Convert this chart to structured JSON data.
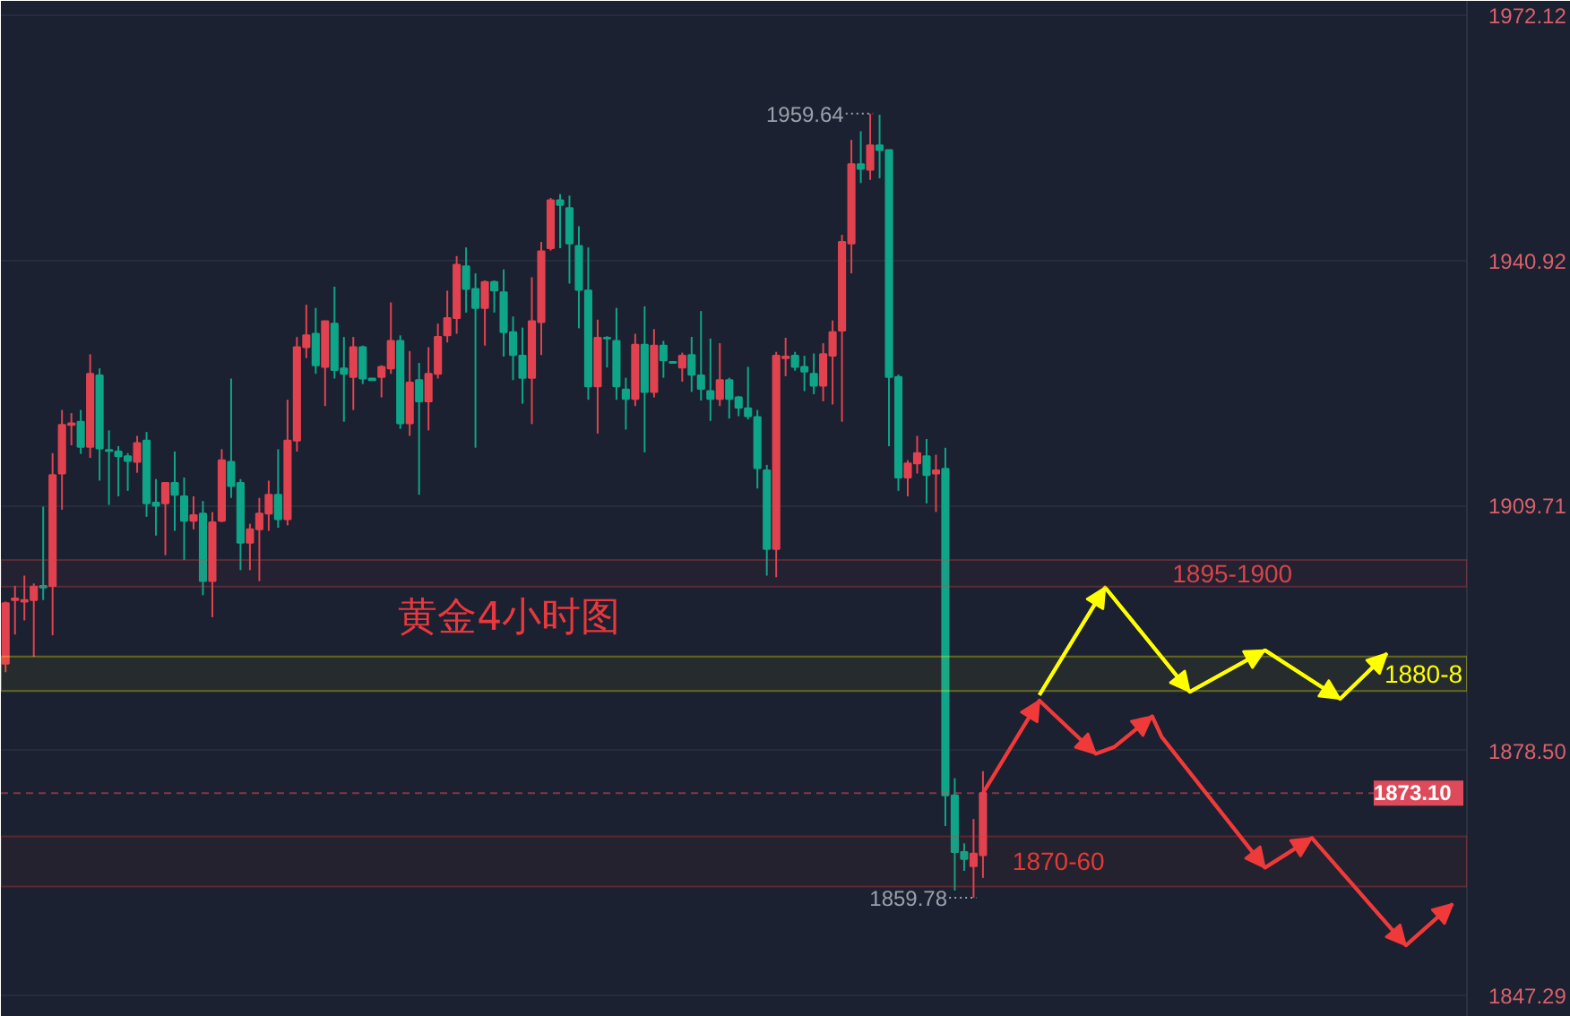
{
  "chart_data": {
    "type": "candlestick",
    "categories": [
      null,
      null,
      null,
      null,
      null,
      null,
      null,
      null,
      null,
      null,
      null,
      null,
      null,
      null,
      null,
      null,
      null,
      null,
      null,
      null,
      null,
      null,
      null,
      null,
      null,
      null,
      null,
      null,
      null,
      null,
      null,
      null,
      null,
      null,
      null,
      null,
      null,
      null,
      null,
      null,
      null,
      null,
      null,
      null,
      null,
      null,
      null,
      null,
      null,
      null,
      null,
      null,
      null,
      null,
      null,
      null,
      null,
      null,
      null,
      null,
      null,
      null,
      null,
      null,
      null,
      null,
      null,
      null,
      null,
      null,
      null,
      null,
      null,
      null,
      null,
      null,
      null,
      null,
      null,
      null,
      null,
      null,
      null,
      null,
      null,
      null,
      null,
      null,
      null,
      null,
      null,
      null,
      null,
      null,
      null,
      null,
      null,
      null,
      null,
      null,
      null,
      null,
      null,
      null,
      null,
      null,
      null,
      null,
      null,
      null,
      null,
      null,
      null,
      null,
      null,
      null,
      null,
      null,
      null,
      null,
      null,
      null,
      null,
      null,
      null,
      null,
      null,
      null,
      null,
      null,
      null,
      null,
      null,
      null,
      null,
      null,
      null,
      null,
      null,
      null,
      null,
      null,
      null,
      null,
      null,
      null,
      null,
      null,
      null,
      null,
      null,
      null,
      null,
      null,
      null,
      null
    ],
    "ohlc": [
      [
        1889.6,
        1897.5,
        1888.5,
        1897.3
      ],
      [
        1897.7,
        1899.5,
        1893.3,
        1897.9
      ],
      [
        1897.5,
        1900.8,
        1895.1,
        1897.7
      ],
      [
        1897.7,
        1899.8,
        1890.5,
        1899.4
      ],
      [
        1899.5,
        1909.6,
        1897.7,
        1899.3
      ],
      [
        1899.5,
        1916.4,
        1893.2,
        1913.6
      ],
      [
        1913.8,
        1921.9,
        1909.2,
        1920.0
      ],
      [
        1920.0,
        1921.5,
        1917.4,
        1920.2
      ],
      [
        1920.4,
        1921.9,
        1916.3,
        1917.2
      ],
      [
        1917.2,
        1929.0,
        1915.8,
        1926.5
      ],
      [
        1926.3,
        1927.2,
        1912.9,
        1917.0
      ],
      [
        1916.8,
        1919.3,
        1909.8,
        1916.7
      ],
      [
        1916.6,
        1917.3,
        1910.9,
        1916.0
      ],
      [
        1916.0,
        1916.4,
        1911.6,
        1915.4
      ],
      [
        1915.3,
        1918.6,
        1913.9,
        1917.7
      ],
      [
        1918.0,
        1919.1,
        1908.3,
        1910.0
      ],
      [
        1910.1,
        1913.1,
        1905.9,
        1909.7
      ],
      [
        1910.0,
        1912.6,
        1903.4,
        1912.6
      ],
      [
        1912.6,
        1916.6,
        1906.5,
        1911.1
      ],
      [
        1910.9,
        1913.3,
        1902.8,
        1907.8
      ],
      [
        1907.8,
        1910.9,
        1906.7,
        1908.5
      ],
      [
        1908.7,
        1910.3,
        1898.3,
        1900.1
      ],
      [
        1900.1,
        1908.9,
        1895.5,
        1907.6
      ],
      [
        1907.8,
        1916.9,
        1907.6,
        1915.5
      ],
      [
        1915.3,
        1925.9,
        1910.7,
        1912.2
      ],
      [
        1912.6,
        1913.1,
        1901.5,
        1905.0
      ],
      [
        1905.0,
        1907.4,
        1901.5,
        1906.7
      ],
      [
        1906.7,
        1910.7,
        1900.1,
        1908.7
      ],
      [
        1908.7,
        1912.9,
        1906.5,
        1911.1
      ],
      [
        1911.1,
        1916.9,
        1906.9,
        1908.0
      ],
      [
        1908.0,
        1923.2,
        1907.2,
        1918.0
      ],
      [
        1918.0,
        1931.2,
        1916.6,
        1929.9
      ],
      [
        1929.9,
        1935.3,
        1928.5,
        1931.4
      ],
      [
        1931.6,
        1934.9,
        1926.5,
        1927.6
      ],
      [
        1927.4,
        1933.2,
        1922.4,
        1933.2
      ],
      [
        1932.9,
        1937.6,
        1925.9,
        1927.0
      ],
      [
        1927.2,
        1931.2,
        1920.4,
        1926.5
      ],
      [
        1926.1,
        1931.2,
        1921.9,
        1929.9
      ],
      [
        1929.9,
        1930.1,
        1925.2,
        1925.9
      ],
      [
        1925.9,
        1925.9,
        1925.7,
        1925.7
      ],
      [
        1926.1,
        1927.6,
        1923.5,
        1927.4
      ],
      [
        1927.2,
        1935.6,
        1926.5,
        1930.7
      ],
      [
        1930.7,
        1931.4,
        1919.5,
        1920.2
      ],
      [
        1920.2,
        1929.4,
        1918.6,
        1925.4
      ],
      [
        1925.7,
        1927.9,
        1911.1,
        1923.0
      ],
      [
        1923.0,
        1929.9,
        1919.3,
        1926.5
      ],
      [
        1926.5,
        1932.9,
        1925.9,
        1931.2
      ],
      [
        1931.4,
        1937.1,
        1930.5,
        1933.6
      ],
      [
        1933.6,
        1941.5,
        1931.6,
        1940.4
      ],
      [
        1940.2,
        1942.6,
        1934.3,
        1937.3
      ],
      [
        1937.3,
        1939.3,
        1917.1,
        1934.9
      ],
      [
        1934.9,
        1938.4,
        1930.1,
        1938.2
      ],
      [
        1938.2,
        1938.4,
        1934.3,
        1937.1
      ],
      [
        1936.9,
        1939.8,
        1928.7,
        1931.8
      ],
      [
        1931.8,
        1933.8,
        1925.7,
        1928.9
      ],
      [
        1928.8,
        1932.4,
        1922.7,
        1926.0
      ],
      [
        1926.0,
        1938.8,
        1920.1,
        1933.2
      ],
      [
        1933.1,
        1943.3,
        1928.9,
        1942.1
      ],
      [
        1942.5,
        1948.9,
        1942.2,
        1948.6
      ],
      [
        1948.6,
        1949.4,
        1942.5,
        1948.0
      ],
      [
        1947.6,
        1949.2,
        1938.0,
        1943.1
      ],
      [
        1942.8,
        1945.3,
        1932.3,
        1937.2
      ],
      [
        1937.1,
        1942.6,
        1923.2,
        1924.9
      ],
      [
        1924.9,
        1933.4,
        1918.9,
        1931.1
      ],
      [
        1931.1,
        1931.3,
        1927.3,
        1931.0
      ],
      [
        1930.7,
        1934.9,
        1923.2,
        1924.9
      ],
      [
        1924.5,
        1926.0,
        1919.4,
        1923.3
      ],
      [
        1923.3,
        1931.6,
        1922.4,
        1930.2
      ],
      [
        1930.2,
        1935.1,
        1916.5,
        1924.2
      ],
      [
        1924.2,
        1932.2,
        1923.5,
        1930.1
      ],
      [
        1930.1,
        1930.7,
        1926.0,
        1928.2
      ],
      [
        1928.0,
        1928.0,
        1927.9,
        1927.9
      ],
      [
        1927.3,
        1929.2,
        1925.5,
        1928.8
      ],
      [
        1928.9,
        1931.2,
        1924.2,
        1926.4
      ],
      [
        1926.3,
        1934.5,
        1923.1,
        1924.6
      ],
      [
        1924.3,
        1931.0,
        1920.5,
        1923.3
      ],
      [
        1923.3,
        1930.4,
        1922.4,
        1925.7
      ],
      [
        1925.7,
        1926.0,
        1920.8,
        1923.3
      ],
      [
        1923.5,
        1923.7,
        1921.1,
        1922.2
      ],
      [
        1922.1,
        1927.4,
        1920.7,
        1921.1
      ],
      [
        1921.0,
        1921.9,
        1911.9,
        1914.5
      ],
      [
        1914.2,
        1914.9,
        1900.8,
        1904.2
      ],
      [
        1904.2,
        1929.3,
        1900.6,
        1928.8
      ],
      [
        1928.5,
        1931.1,
        1926.2,
        1928.7
      ],
      [
        1928.8,
        1929.3,
        1926.9,
        1927.4
      ],
      [
        1927.4,
        1928.8,
        1924.3,
        1926.8
      ],
      [
        1926.5,
        1929.1,
        1923.9,
        1925.0
      ],
      [
        1925.0,
        1930.4,
        1923.0,
        1929.0
      ],
      [
        1928.8,
        1933.3,
        1922.6,
        1931.8
      ],
      [
        1932.0,
        1944.2,
        1920.4,
        1943.3
      ],
      [
        1943.1,
        1956.3,
        1939.3,
        1953.2
      ],
      [
        1953.2,
        1957.4,
        1950.8,
        1952.6
      ],
      [
        1952.5,
        1959.64,
        1951.2,
        1955.6
      ],
      [
        1955.6,
        1959.5,
        1951.4,
        1955.0
      ],
      [
        1955.0,
        1955.0,
        1917.3,
        1926.1
      ],
      [
        1926.1,
        1926.4,
        1911.6,
        1913.3
      ],
      [
        1913.3,
        1915.5,
        1910.9,
        1915.1
      ],
      [
        1915.1,
        1918.6,
        1913.8,
        1916.4
      ],
      [
        1916.0,
        1918.2,
        1910.0,
        1913.6
      ],
      [
        1913.8,
        1916.2,
        1908.9,
        1914.2
      ],
      [
        1914.4,
        1917.1,
        1868.9,
        1872.8
      ],
      [
        1872.8,
        1875.0,
        1860.7,
        1865.6
      ],
      [
        1865.6,
        1866.7,
        1863.2,
        1864.7
      ],
      [
        1863.8,
        1869.8,
        1859.78,
        1865.4
      ],
      [
        1865.2,
        1875.9,
        1862.3,
        1873.1
      ],
      null,
      null,
      null,
      null,
      null,
      null,
      null,
      null,
      null,
      null,
      null,
      null,
      null,
      null,
      null,
      null,
      null,
      null,
      null,
      null,
      null,
      null,
      null,
      null,
      null,
      null,
      null,
      null,
      null,
      null,
      null,
      null,
      null,
      null,
      null,
      null,
      null,
      null,
      null,
      null,
      null,
      null,
      null,
      null,
      null,
      null,
      null,
      null,
      null,
      null,
      null
    ],
    "colors": [
      "#e2424f",
      "#e2424f",
      "#e2424f",
      "#e2424f",
      "#0ea589",
      "#e2424f",
      "#e2424f",
      "#e2424f",
      "#0ea589",
      "#e2424f",
      "#0ea589",
      "#0ea589",
      "#0ea589",
      "#0ea589",
      "#e2424f",
      "#0ea589",
      "#0ea589",
      "#e2424f",
      "#0ea589",
      "#0ea589",
      "#e2424f",
      "#0ea589",
      "#e2424f",
      "#e2424f",
      "#0ea589",
      "#0ea589",
      "#e2424f",
      "#e2424f",
      "#e2424f",
      "#0ea589",
      "#e2424f",
      "#e2424f",
      "#e2424f",
      "#0ea589",
      "#e2424f",
      "#0ea589",
      "#0ea589",
      "#e2424f",
      "#0ea589",
      "#0ea589",
      "#e2424f",
      "#e2424f",
      "#0ea589",
      "#e2424f",
      "#0ea589",
      "#e2424f",
      "#e2424f",
      "#e2424f",
      "#e2424f",
      "#0ea589",
      "#0ea589",
      "#e2424f",
      "#0ea589",
      "#0ea589",
      "#0ea589",
      "#0ea589",
      "#e2424f",
      "#e2424f",
      "#e2424f",
      "#0ea589",
      "#0ea589",
      "#0ea589",
      "#0ea589",
      "#e2424f",
      "#0ea589",
      "#0ea589",
      "#0ea589",
      "#e2424f",
      "#0ea589",
      "#e2424f",
      "#0ea589",
      "#0ea589",
      "#e2424f",
      "#0ea589",
      "#0ea589",
      "#0ea589",
      "#e2424f",
      "#0ea589",
      "#0ea589",
      "#0ea589",
      "#0ea589",
      "#0ea589",
      "#e2424f",
      "#e2424f",
      "#0ea589",
      "#0ea589",
      "#0ea589",
      "#e2424f",
      "#e2424f",
      "#e2424f",
      "#e2424f",
      "#0ea589",
      "#e2424f",
      "#0ea589",
      "#0ea589",
      "#0ea589",
      "#e2424f",
      "#e2424f",
      "#0ea589",
      "#e2424f",
      "#0ea589",
      "#0ea589",
      "#0ea589",
      "#e2424f",
      "#e2424f",
      null,
      null,
      null,
      null,
      null,
      null,
      null,
      null,
      null,
      null,
      null,
      null,
      null,
      null,
      null,
      null,
      null,
      null,
      null,
      null,
      null,
      null,
      null,
      null,
      null,
      null,
      null,
      null,
      null,
      null,
      null,
      null,
      null,
      null,
      null,
      null,
      null,
      null,
      null,
      null,
      null,
      null,
      null,
      null,
      null,
      null,
      null,
      null,
      null,
      null,
      null
    ],
    "series": [
      {
        "type": "line",
        "color": "#ffff00",
        "values": [
          null,
          null,
          null,
          null,
          null,
          null,
          null,
          null,
          null,
          null,
          null,
          null,
          null,
          null,
          null,
          null,
          null,
          null,
          null,
          null,
          null,
          null,
          null,
          null,
          null,
          null,
          null,
          null,
          null,
          null,
          null,
          null,
          null,
          null,
          null,
          null,
          null,
          null,
          null,
          null,
          null,
          null,
          null,
          null,
          null,
          null,
          null,
          null,
          null,
          null,
          null,
          null,
          null,
          null,
          null,
          null,
          null,
          null,
          null,
          null,
          null,
          null,
          null,
          null,
          null,
          null,
          null,
          null,
          null,
          null,
          null,
          null,
          null,
          null,
          null,
          null,
          null,
          null,
          null,
          null,
          null,
          null,
          null,
          null,
          null,
          null,
          null,
          null,
          null,
          null,
          null,
          null,
          null,
          null,
          null,
          null,
          null,
          null,
          null,
          null,
          null,
          null,
          null,
          null,
          null,
          null,
          null,
          null,
          null,
          null,
          1885.6,
          null,
          null,
          null,
          null,
          null,
          null,
          1899.3,
          null,
          null,
          null,
          null,
          null,
          null,
          null,
          null,
          1886.0,
          null,
          null,
          null,
          null,
          null,
          null,
          null,
          1891.3,
          null,
          null,
          null,
          null,
          null,
          null,
          null,
          1885.1,
          null,
          null,
          null,
          null,
          1890.9,
          null,
          null,
          null,
          null,
          null,
          null,
          null,
          null
        ]
      },
      {
        "type": "line",
        "color": "#f03a3a",
        "values": [
          null,
          null,
          null,
          null,
          null,
          null,
          null,
          null,
          null,
          null,
          null,
          null,
          null,
          null,
          null,
          null,
          null,
          null,
          null,
          null,
          null,
          null,
          null,
          null,
          null,
          null,
          null,
          null,
          null,
          null,
          null,
          null,
          null,
          null,
          null,
          null,
          null,
          null,
          null,
          null,
          null,
          null,
          null,
          null,
          null,
          null,
          null,
          null,
          null,
          null,
          null,
          null,
          null,
          null,
          null,
          null,
          null,
          null,
          null,
          null,
          null,
          null,
          null,
          null,
          null,
          null,
          null,
          null,
          null,
          null,
          null,
          null,
          null,
          null,
          null,
          null,
          null,
          null,
          null,
          null,
          null,
          null,
          null,
          null,
          null,
          null,
          null,
          null,
          null,
          null,
          null,
          null,
          null,
          null,
          null,
          null,
          null,
          null,
          null,
          null,
          null,
          null,
          null,
          null,
          1873.1,
          null,
          null,
          null,
          null,
          null,
          1884.9,
          null,
          null,
          null,
          null,
          null,
          1878.1,
          null,
          1879.0,
          null,
          null,
          null,
          1882.9,
          1880.3,
          null,
          null,
          null,
          null,
          null,
          null,
          null,
          null,
          null,
          null,
          1863.6,
          null,
          null,
          null,
          null,
          1867.4,
          null,
          null,
          null,
          null,
          null,
          null,
          null,
          null,
          null,
          1853.7,
          null,
          null,
          null,
          null,
          1859.0,
          null
        ]
      }
    ],
    "bands": [
      {
        "axis": "y",
        "from": 1899.4,
        "to": 1902.8,
        "label": "1895-1900",
        "color": "#d9434b"
      },
      {
        "axis": "y",
        "from": 1886.1,
        "to": 1890.5,
        "label": "1880-8",
        "color": "#ffff00"
      },
      {
        "axis": "y",
        "from": 1861.2,
        "to": 1867.6,
        "label": "1870-60",
        "color": "#e53935"
      }
    ],
    "ref_lines": [
      {
        "axis": "y",
        "value": 1873.1,
        "label": "1873.10",
        "color": "#dd4b5b",
        "line_style": "dashed"
      }
    ],
    "annotations": [
      "黄金4小时图",
      "1959.64",
      "1859.78"
    ],
    "ylim": [
      1844.6,
      1974.0
    ],
    "yticks": [
      1972.12,
      1940.92,
      1909.71,
      {
        "value": 1878.5,
        "label": "1878.50"
      },
      1847.29
    ],
    "grid": "y",
    "tick_labels": "y"
  }
}
